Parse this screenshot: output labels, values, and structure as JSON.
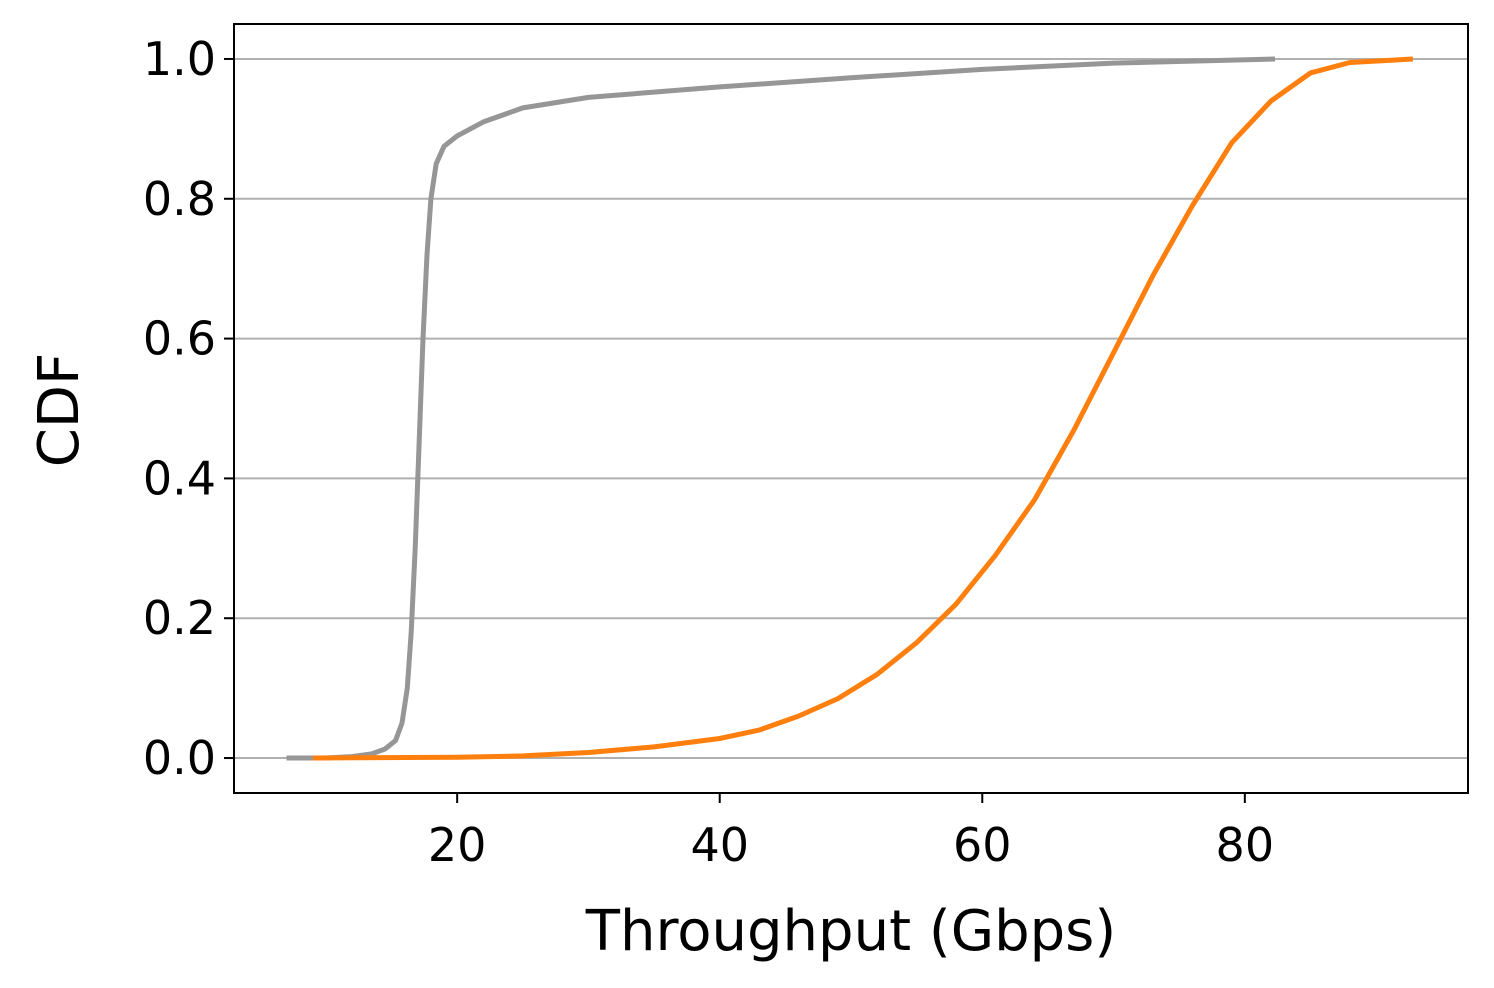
{
  "chart_data": {
    "type": "line",
    "title": "",
    "xlabel": "Throughput (Gbps)",
    "ylabel": "CDF",
    "xlim": [
      3,
      97
    ],
    "ylim": [
      -0.05,
      1.05
    ],
    "xticks": [
      20,
      40,
      60,
      80
    ],
    "yticks": [
      0.0,
      0.2,
      0.4,
      0.6,
      0.8,
      1.0
    ],
    "xtick_labels": [
      "20",
      "40",
      "60",
      "80"
    ],
    "ytick_labels": [
      "0.0",
      "0.2",
      "0.4",
      "0.6",
      "0.8",
      "1.0"
    ],
    "grid": "y",
    "legend": "none",
    "series": [
      {
        "color": "#969696",
        "points": [
          [
            7.0,
            0.0
          ],
          [
            10.0,
            0.0
          ],
          [
            12.0,
            0.002
          ],
          [
            13.5,
            0.006
          ],
          [
            14.5,
            0.013
          ],
          [
            15.3,
            0.025
          ],
          [
            15.8,
            0.05
          ],
          [
            16.2,
            0.1
          ],
          [
            16.5,
            0.18
          ],
          [
            16.8,
            0.3
          ],
          [
            17.1,
            0.45
          ],
          [
            17.4,
            0.6
          ],
          [
            17.7,
            0.72
          ],
          [
            18.0,
            0.8
          ],
          [
            18.4,
            0.85
          ],
          [
            19.0,
            0.875
          ],
          [
            20.0,
            0.89
          ],
          [
            22.0,
            0.91
          ],
          [
            25.0,
            0.93
          ],
          [
            30.0,
            0.945
          ],
          [
            40.0,
            0.96
          ],
          [
            50.0,
            0.973
          ],
          [
            60.0,
            0.985
          ],
          [
            70.0,
            0.994
          ],
          [
            82.3,
            1.0
          ]
        ]
      },
      {
        "color": "#ff7f0e",
        "points": [
          [
            9.0,
            0.0
          ],
          [
            20.0,
            0.001
          ],
          [
            25.0,
            0.003
          ],
          [
            30.0,
            0.008
          ],
          [
            35.0,
            0.016
          ],
          [
            40.0,
            0.028
          ],
          [
            43.0,
            0.04
          ],
          [
            46.0,
            0.06
          ],
          [
            49.0,
            0.085
          ],
          [
            52.0,
            0.12
          ],
          [
            55.0,
            0.165
          ],
          [
            58.0,
            0.22
          ],
          [
            61.0,
            0.29
          ],
          [
            64.0,
            0.37
          ],
          [
            67.0,
            0.47
          ],
          [
            70.0,
            0.58
          ],
          [
            73.0,
            0.69
          ],
          [
            76.0,
            0.79
          ],
          [
            79.0,
            0.88
          ],
          [
            82.0,
            0.94
          ],
          [
            85.0,
            0.98
          ],
          [
            88.0,
            0.995
          ],
          [
            92.8,
            1.0
          ]
        ]
      }
    ]
  }
}
